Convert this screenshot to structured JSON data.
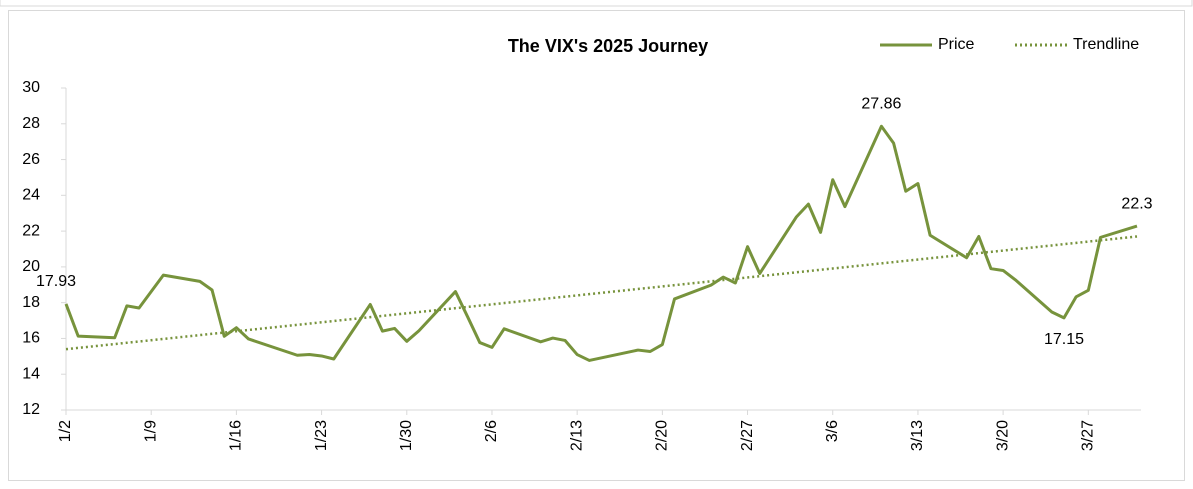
{
  "chart_data": {
    "type": "line",
    "title": "The VIX's 2025 Journey",
    "x": [
      "1/2",
      "1/3",
      "1/6",
      "1/7",
      "1/8",
      "1/10",
      "1/13",
      "1/14",
      "1/15",
      "1/16",
      "1/17",
      "1/21",
      "1/22",
      "1/23",
      "1/24",
      "1/27",
      "1/28",
      "1/29",
      "1/30",
      "1/31",
      "2/3",
      "2/4",
      "2/5",
      "2/6",
      "2/7",
      "2/10",
      "2/11",
      "2/12",
      "2/13",
      "2/14",
      "2/18",
      "2/19",
      "2/20",
      "2/21",
      "2/24",
      "2/25",
      "2/26",
      "2/27",
      "2/28",
      "3/3",
      "3/4",
      "3/5",
      "3/6",
      "3/7",
      "3/10",
      "3/11",
      "3/12",
      "3/13",
      "3/14",
      "3/17",
      "3/18",
      "3/19",
      "3/20",
      "3/21",
      "3/24",
      "3/25",
      "3/26",
      "3/27",
      "3/28",
      "3/31"
    ],
    "series": [
      {
        "name": "Price",
        "color": "#77933c",
        "values": [
          17.93,
          16.13,
          16.04,
          17.82,
          17.7,
          19.54,
          19.19,
          18.71,
          16.12,
          16.6,
          15.97,
          15.06,
          15.1,
          15.02,
          14.85,
          17.9,
          16.41,
          16.56,
          15.84,
          16.43,
          18.62,
          17.21,
          15.77,
          15.5,
          16.54,
          15.81,
          16.02,
          15.89,
          15.1,
          14.77,
          15.35,
          15.27,
          15.66,
          18.21,
          18.98,
          19.43,
          19.1,
          21.13,
          19.63,
          22.78,
          23.51,
          21.93,
          24.87,
          23.37,
          27.86,
          26.92,
          24.23,
          24.66,
          21.77,
          20.51,
          21.7,
          19.9,
          19.8,
          19.28,
          17.48,
          17.15,
          18.33,
          18.69,
          21.65,
          22.28
        ],
        "value_labels": [
          "17.93",
          null,
          null,
          null,
          null,
          null,
          null,
          null,
          null,
          null,
          null,
          null,
          null,
          null,
          null,
          null,
          null,
          null,
          null,
          null,
          null,
          null,
          null,
          null,
          null,
          null,
          null,
          null,
          null,
          null,
          null,
          null,
          null,
          null,
          null,
          null,
          null,
          null,
          null,
          null,
          null,
          null,
          null,
          null,
          "27.86",
          null,
          null,
          null,
          null,
          null,
          null,
          null,
          null,
          null,
          null,
          "17.15",
          null,
          null,
          null,
          "22.3"
        ]
      },
      {
        "name": "Trendline",
        "color": "#77933c",
        "dotted": true,
        "x": [
          "1/2",
          "3/31"
        ],
        "values": [
          15.4,
          21.7
        ]
      }
    ],
    "xlim": [
      "1/2",
      "3/31"
    ],
    "xticks": [
      "1/2",
      "1/9",
      "1/16",
      "1/23",
      "1/30",
      "2/6",
      "2/13",
      "2/20",
      "2/27",
      "3/6",
      "3/13",
      "3/20",
      "3/27"
    ],
    "ylim": [
      12,
      30
    ],
    "yticks": [
      12,
      14,
      16,
      18,
      20,
      22,
      24,
      26,
      28,
      30
    ],
    "legend": "top-right"
  }
}
